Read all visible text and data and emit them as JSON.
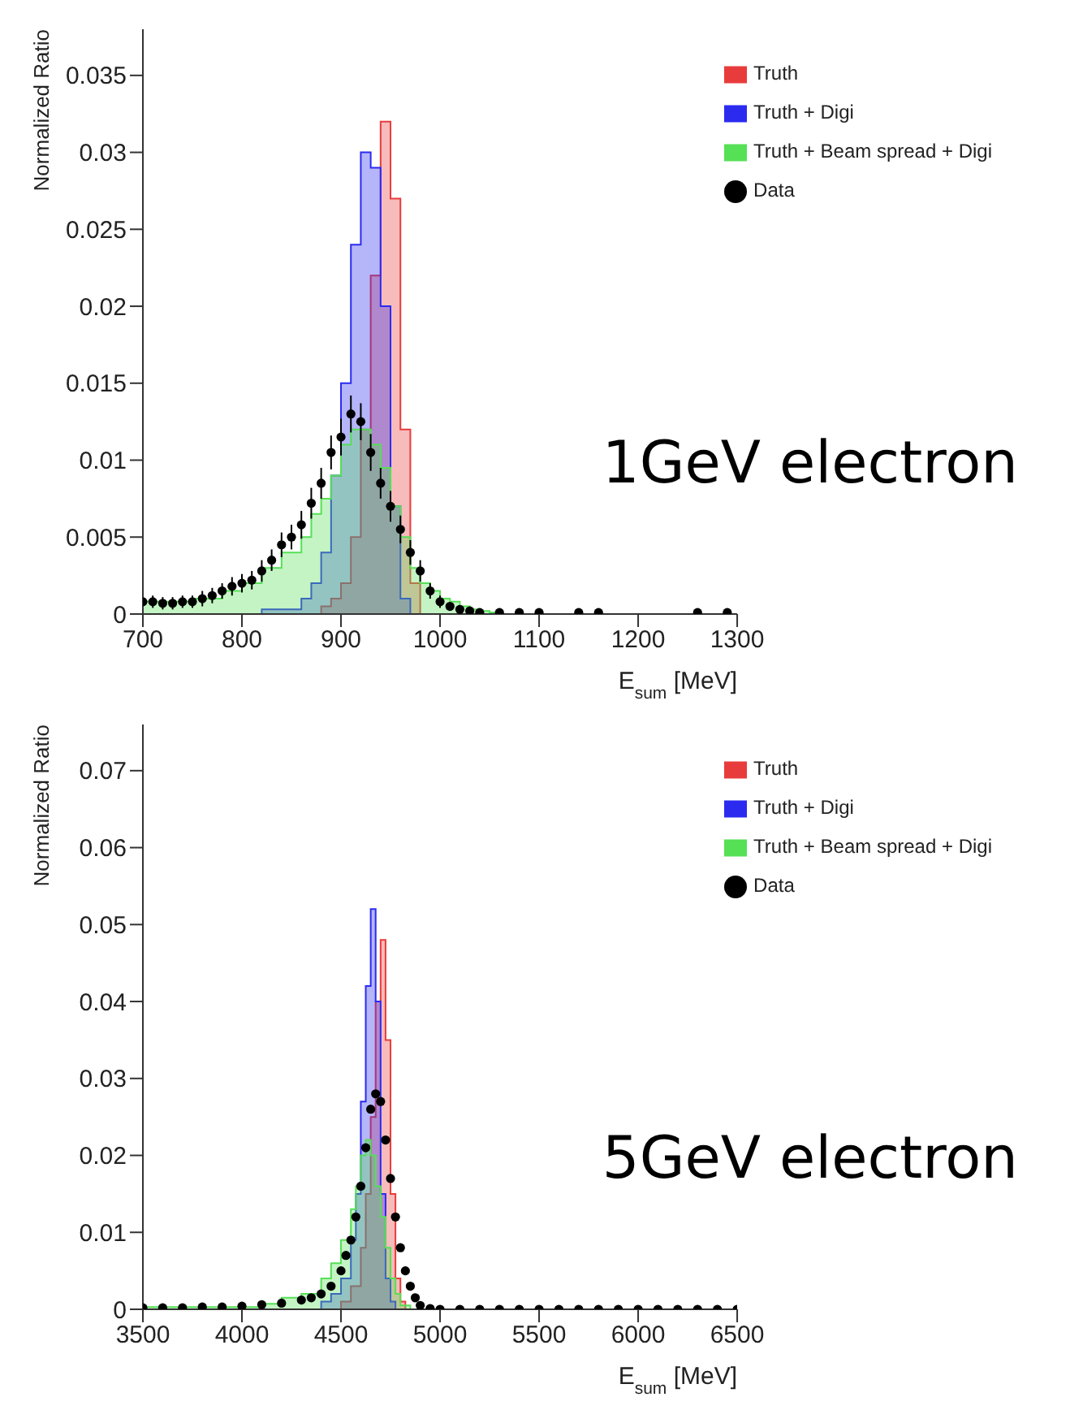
{
  "chart_data": [
    {
      "type": "area",
      "xlabel": "E$_{sum}$ [MeV]",
      "ylabel": "Normalized Ratio",
      "annotations": [
        "1GeV electron"
      ],
      "legend": "top right",
      "xlim": [
        700,
        1300
      ],
      "xticks": [
        700,
        800,
        900,
        1000,
        1100,
        1200,
        1300
      ],
      "ylim": [
        0,
        0.038
      ],
      "yticks": [
        0,
        0.005,
        0.01,
        0.015,
        0.02,
        0.025,
        0.03,
        0.035
      ],
      "series": [
        {
          "name": "Data",
          "type": "scatter",
          "marker": "circle",
          "color": "#000000",
          "x": [
            700,
            710,
            720,
            730,
            740,
            750,
            760,
            770,
            780,
            790,
            800,
            810,
            820,
            830,
            840,
            850,
            860,
            870,
            880,
            890,
            900,
            910,
            920,
            930,
            940,
            950,
            960,
            970,
            980,
            990,
            1000,
            1010,
            1020,
            1030,
            1040,
            1060,
            1080,
            1100,
            1140,
            1160,
            1260,
            1290
          ],
          "values": [
            0.0008,
            0.0008,
            0.0007,
            0.0007,
            0.0008,
            0.0008,
            0.001,
            0.0012,
            0.0015,
            0.0018,
            0.002,
            0.0022,
            0.0028,
            0.0035,
            0.0045,
            0.005,
            0.0058,
            0.0072,
            0.0085,
            0.0105,
            0.0115,
            0.013,
            0.0125,
            0.0105,
            0.0085,
            0.007,
            0.0055,
            0.004,
            0.0028,
            0.0015,
            0.0008,
            0.0005,
            0.0003,
            0.0002,
            0.0001,
            0.0001,
            0.0001,
            0.0001,
            0.0001,
            0.0001,
            0.0001,
            0.0001
          ],
          "errors": [
            0.0004,
            0.0004,
            0.0004,
            0.0004,
            0.0004,
            0.0004,
            0.0005,
            0.0005,
            0.0005,
            0.0006,
            0.0006,
            0.0006,
            0.0007,
            0.0007,
            0.0008,
            0.0008,
            0.0009,
            0.001,
            0.001,
            0.0011,
            0.0012,
            0.0012,
            0.0012,
            0.0012,
            0.001,
            0.001,
            0.0009,
            0.0008,
            0.0007,
            0.0005,
            0.0004,
            null,
            null,
            null,
            null,
            null,
            null,
            null,
            null,
            null,
            null,
            null
          ]
        },
        {
          "name": "Truth",
          "color": "#e83c3c",
          "x": [
            700,
            880,
            890,
            900,
            910,
            920,
            930,
            940,
            950,
            960,
            970,
            980,
            1300
          ],
          "values": [
            0,
            0.0005,
            0.001,
            0.002,
            0.005,
            0.012,
            0.022,
            0.032,
            0.027,
            0.012,
            0.002,
            0,
            0
          ]
        },
        {
          "name": "Truth + Digi",
          "color": "#2b2bf0",
          "x": [
            700,
            820,
            860,
            870,
            880,
            890,
            900,
            910,
            920,
            930,
            940,
            950,
            960,
            970,
            1300
          ],
          "values": [
            0,
            0.0003,
            0.001,
            0.002,
            0.004,
            0.009,
            0.015,
            0.024,
            0.03,
            0.029,
            0.02,
            0.007,
            0.001,
            0,
            0
          ]
        },
        {
          "name": "Truth + Beam spread + Digi",
          "color": "#55e055",
          "x": [
            700,
            750,
            780,
            800,
            820,
            840,
            860,
            870,
            880,
            890,
            900,
            910,
            920,
            930,
            940,
            950,
            960,
            970,
            980,
            990,
            1000,
            1010,
            1020,
            1030,
            1040,
            1050,
            1060,
            1300
          ],
          "values": [
            0.0008,
            0.001,
            0.0015,
            0.002,
            0.003,
            0.004,
            0.005,
            0.0065,
            0.0075,
            0.009,
            0.011,
            0.012,
            0.012,
            0.011,
            0.0095,
            0.007,
            0.005,
            0.003,
            0.002,
            0.0015,
            0.001,
            0.0008,
            0.0005,
            0.0003,
            0.0002,
            0.0001,
            0,
            0
          ]
        }
      ]
    },
    {
      "type": "area",
      "xlabel": "E$_{sum}$ [MeV]",
      "ylabel": "Normalized Ratio",
      "annotations": [
        "5GeV electron"
      ],
      "legend": "top right",
      "xlim": [
        3500,
        6500
      ],
      "xticks": [
        3500,
        4000,
        4500,
        5000,
        5500,
        6000,
        6500
      ],
      "ylim": [
        0,
        0.076
      ],
      "yticks": [
        0,
        0.01,
        0.02,
        0.03,
        0.04,
        0.05,
        0.06,
        0.07
      ],
      "series": [
        {
          "name": "Data",
          "type": "scatter",
          "marker": "circle",
          "color": "#000000",
          "x": [
            3500,
            3600,
            3700,
            3800,
            3900,
            4000,
            4100,
            4200,
            4300,
            4350,
            4400,
            4450,
            4500,
            4525,
            4550,
            4575,
            4600,
            4625,
            4650,
            4675,
            4700,
            4725,
            4750,
            4775,
            4800,
            4825,
            4850,
            4875,
            4900,
            4950,
            5000,
            5100,
            5200,
            5300,
            5400,
            5500,
            5600,
            5700,
            5800,
            5900,
            6000,
            6100,
            6200,
            6300,
            6400,
            6500
          ],
          "values": [
            0.0002,
            0.0002,
            0.0002,
            0.0003,
            0.0003,
            0.0004,
            0.0006,
            0.0008,
            0.0012,
            0.0015,
            0.002,
            0.003,
            0.005,
            0.007,
            0.009,
            0.012,
            0.016,
            0.021,
            0.026,
            0.028,
            0.027,
            0.022,
            0.017,
            0.012,
            0.008,
            0.005,
            0.003,
            0.0015,
            0.0005,
            0.0001,
            0,
            0,
            0,
            0,
            0,
            0,
            0,
            0,
            0,
            0,
            0,
            0,
            0,
            0,
            0,
            0
          ]
        },
        {
          "name": "Truth",
          "color": "#e83c3c",
          "x": [
            3500,
            4500,
            4550,
            4600,
            4625,
            4650,
            4675,
            4700,
            4725,
            4750,
            4775,
            4800,
            4825,
            6500
          ],
          "values": [
            0,
            0.001,
            0.003,
            0.008,
            0.015,
            0.025,
            0.04,
            0.048,
            0.035,
            0.015,
            0.004,
            0.001,
            0,
            0
          ]
        },
        {
          "name": "Truth + Digi",
          "color": "#2b2bf0",
          "x": [
            3500,
            4400,
            4450,
            4500,
            4550,
            4575,
            4600,
            4625,
            4650,
            4675,
            4700,
            4725,
            4750,
            4775,
            6500
          ],
          "values": [
            0,
            0.001,
            0.002,
            0.004,
            0.009,
            0.015,
            0.027,
            0.042,
            0.052,
            0.04,
            0.015,
            0.004,
            0.001,
            0,
            0
          ]
        },
        {
          "name": "Truth + Beam spread + Digi",
          "color": "#55e055",
          "x": [
            3500,
            4000,
            4100,
            4200,
            4300,
            4400,
            4450,
            4500,
            4550,
            4575,
            4600,
            4625,
            4650,
            4675,
            4700,
            4725,
            4750,
            4775,
            4800,
            4850,
            6500
          ],
          "values": [
            0.0003,
            0.0003,
            0.0007,
            0.0015,
            0.002,
            0.004,
            0.006,
            0.009,
            0.013,
            0.016,
            0.02,
            0.022,
            0.02,
            0.016,
            0.012,
            0.008,
            0.004,
            0.002,
            0.0005,
            0,
            0
          ]
        }
      ]
    }
  ]
}
